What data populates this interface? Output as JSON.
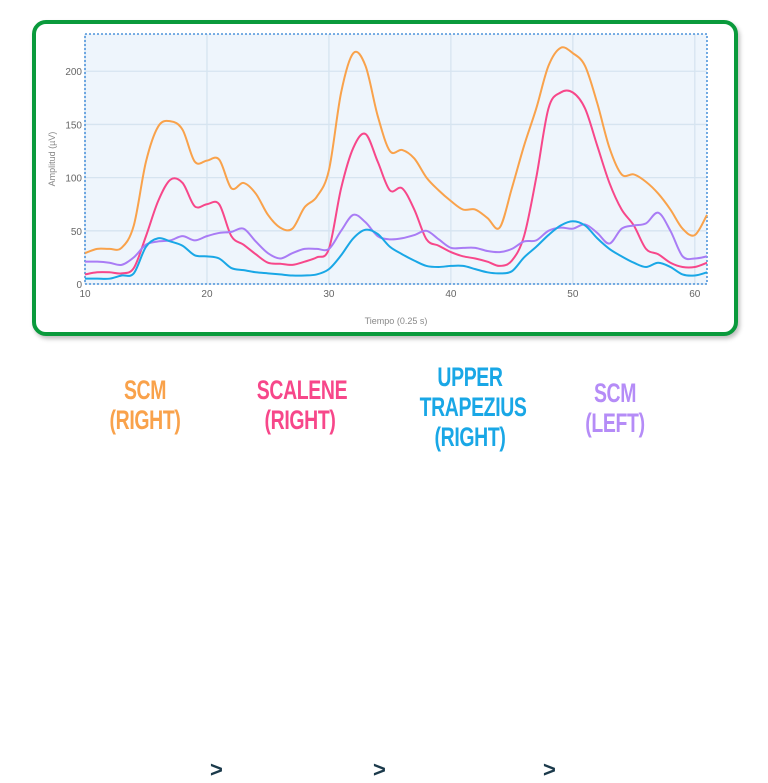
{
  "chart_data": {
    "type": "line",
    "title": "",
    "xlabel": "Tiempo (0.25 s)",
    "ylabel": "Amplitud (µV)",
    "xlim": [
      10,
      61
    ],
    "ylim": [
      0,
      235
    ],
    "xticks": [
      10,
      20,
      30,
      40,
      50,
      60
    ],
    "yticks": [
      0,
      50,
      100,
      150,
      200
    ],
    "grid": true,
    "x": [
      10,
      11,
      12,
      13,
      14,
      15,
      16,
      17,
      18,
      19,
      20,
      21,
      22,
      23,
      24,
      25,
      26,
      27,
      28,
      29,
      30,
      31,
      32,
      33,
      34,
      35,
      36,
      37,
      38,
      39,
      40,
      41,
      42,
      43,
      44,
      45,
      46,
      47,
      48,
      49,
      50,
      51,
      52,
      53,
      54,
      55,
      56,
      57,
      58,
      59,
      60,
      61
    ],
    "series": [
      {
        "color": "#f9a24b",
        "values": [
          29,
          33,
          33,
          34,
          55,
          115,
          148,
          153,
          145,
          115,
          116,
          117,
          90,
          95,
          85,
          65,
          53,
          52,
          72,
          82,
          107,
          180,
          217,
          205,
          158,
          125,
          126,
          118,
          100,
          88,
          78,
          70,
          70,
          62,
          53,
          90,
          130,
          165,
          205,
          222,
          217,
          205,
          170,
          128,
          103,
          103,
          96,
          85,
          70,
          52,
          46,
          65
        ]
      },
      {
        "color": "#f7478a",
        "values": [
          9,
          11,
          11,
          10,
          15,
          45,
          78,
          98,
          95,
          73,
          75,
          75,
          45,
          37,
          28,
          20,
          19,
          18,
          21,
          25,
          33,
          90,
          128,
          141,
          115,
          88,
          90,
          70,
          42,
          36,
          30,
          26,
          24,
          21,
          17,
          22,
          45,
          100,
          165,
          180,
          180,
          165,
          130,
          95,
          70,
          55,
          33,
          28,
          20,
          16,
          16,
          20
        ]
      },
      {
        "color": "#a97cf5",
        "values": [
          21,
          21,
          20,
          18,
          25,
          37,
          40,
          41,
          45,
          41,
          45,
          48,
          49,
          52,
          40,
          29,
          24,
          29,
          33,
          33,
          33,
          50,
          65,
          58,
          45,
          42,
          43,
          46,
          50,
          42,
          34,
          34,
          34,
          31,
          30,
          33,
          40,
          41,
          50,
          53,
          52,
          56,
          48,
          38,
          52,
          55,
          57,
          67,
          50,
          26,
          24,
          26
        ]
      },
      {
        "color": "#19a7e6",
        "values": [
          5,
          5,
          5,
          8,
          10,
          35,
          43,
          40,
          36,
          27,
          26,
          24,
          15,
          13,
          11,
          10,
          9,
          8,
          8,
          9,
          14,
          27,
          43,
          51,
          47,
          35,
          28,
          22,
          17,
          16,
          17,
          17,
          14,
          11,
          10,
          12,
          25,
          35,
          46,
          55,
          59,
          55,
          43,
          33,
          26,
          20,
          16,
          20,
          16,
          9,
          8,
          11
        ]
      }
    ]
  },
  "legend": {
    "items": [
      {
        "line1": "SCM",
        "line2": "(RIGHT)",
        "line3": "",
        "color": "#f9a24b"
      },
      {
        "line1": "SCALENE",
        "line2": "(RIGHT)",
        "line3": "",
        "color": "#f7478a"
      },
      {
        "line1": "UPPER",
        "line2": "TRAPEZIUS",
        "line3": "(RIGHT)",
        "color": "#19a7e6"
      },
      {
        "line1": "SCM",
        "line2": "(LEFT)",
        "line3": "",
        "color": "#b58cf7"
      }
    ],
    "separator": ">"
  }
}
